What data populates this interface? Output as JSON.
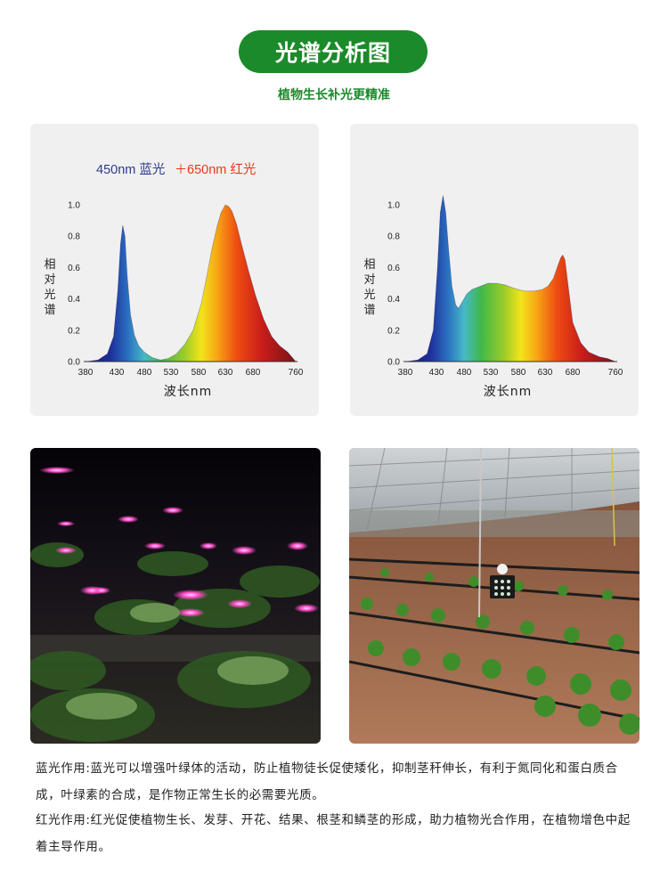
{
  "header": {
    "title": "光谱分析图",
    "subtitle": "植物生长补光更精准"
  },
  "colors": {
    "brand_green": "#1b8a2a",
    "legend_blue": "#2c3a8c",
    "legend_red": "#e53a16"
  },
  "chart_data": [
    {
      "type": "area",
      "legend": {
        "blue_label": "450nm 蓝光",
        "plus": "＋",
        "red_label": "650nm 红光"
      },
      "xlabel": "波长nm",
      "ylabel": "相对光谱",
      "x_ticks": [
        "380",
        "430",
        "480",
        "530",
        "580",
        "630",
        "680",
        "760"
      ],
      "y_ticks": [
        "0.0",
        "0.2",
        "0.4",
        "0.6",
        "0.8",
        "1.0"
      ],
      "xlim": [
        380,
        760
      ],
      "ylim": [
        0,
        1.0
      ],
      "series": [
        {
          "x": [
            380,
            400,
            415,
            425,
            432,
            437,
            441,
            445,
            449,
            455,
            462,
            470,
            480,
            495,
            510,
            525,
            540,
            555,
            570,
            585,
            595,
            605,
            615,
            622,
            630,
            636,
            642,
            650,
            660,
            672,
            685,
            700,
            715,
            730,
            745,
            760
          ],
          "y": [
            0.0,
            0.01,
            0.05,
            0.16,
            0.45,
            0.75,
            0.87,
            0.8,
            0.55,
            0.3,
            0.17,
            0.1,
            0.06,
            0.025,
            0.01,
            0.02,
            0.05,
            0.11,
            0.2,
            0.37,
            0.54,
            0.72,
            0.87,
            0.95,
            1.0,
            0.99,
            0.96,
            0.88,
            0.74,
            0.58,
            0.42,
            0.27,
            0.16,
            0.1,
            0.06,
            0.0
          ]
        }
      ]
    },
    {
      "type": "area",
      "xlabel": "波长nm",
      "ylabel": "相对光谱",
      "x_ticks": [
        "380",
        "430",
        "480",
        "530",
        "580",
        "630",
        "680",
        "760"
      ],
      "y_ticks": [
        "0.0",
        "0.2",
        "0.4",
        "0.6",
        "0.8",
        "1.0"
      ],
      "xlim": [
        380,
        760
      ],
      "ylim": [
        0,
        1.0
      ],
      "series": [
        {
          "x": [
            380,
            400,
            415,
            425,
            432,
            437,
            442,
            447,
            452,
            458,
            465,
            470,
            475,
            485,
            495,
            510,
            525,
            540,
            555,
            570,
            590,
            610,
            625,
            635,
            645,
            652,
            658,
            662,
            666,
            672,
            680,
            695,
            710,
            730,
            745,
            760
          ],
          "y": [
            0.0,
            0.01,
            0.05,
            0.2,
            0.6,
            0.95,
            1.06,
            0.95,
            0.72,
            0.48,
            0.36,
            0.34,
            0.37,
            0.43,
            0.46,
            0.48,
            0.5,
            0.5,
            0.49,
            0.47,
            0.45,
            0.45,
            0.46,
            0.48,
            0.53,
            0.6,
            0.66,
            0.68,
            0.65,
            0.48,
            0.25,
            0.12,
            0.06,
            0.03,
            0.02,
            0.0
          ]
        }
      ]
    }
  ],
  "descriptions": {
    "blue": "蓝光作用:蓝光可以增强叶绿体的活动，防止植物徒长促使矮化，抑制茎秆伸长，有利于氮同化和蛋白质合成，叶绿素的合成，是作物正常生长的必需要光质。",
    "red": "红光作用:红光促使植物生长、发芽、开花、结果、根茎和鳞茎的形成，助力植物光合作用，在植物增色中起着主导作用。"
  }
}
